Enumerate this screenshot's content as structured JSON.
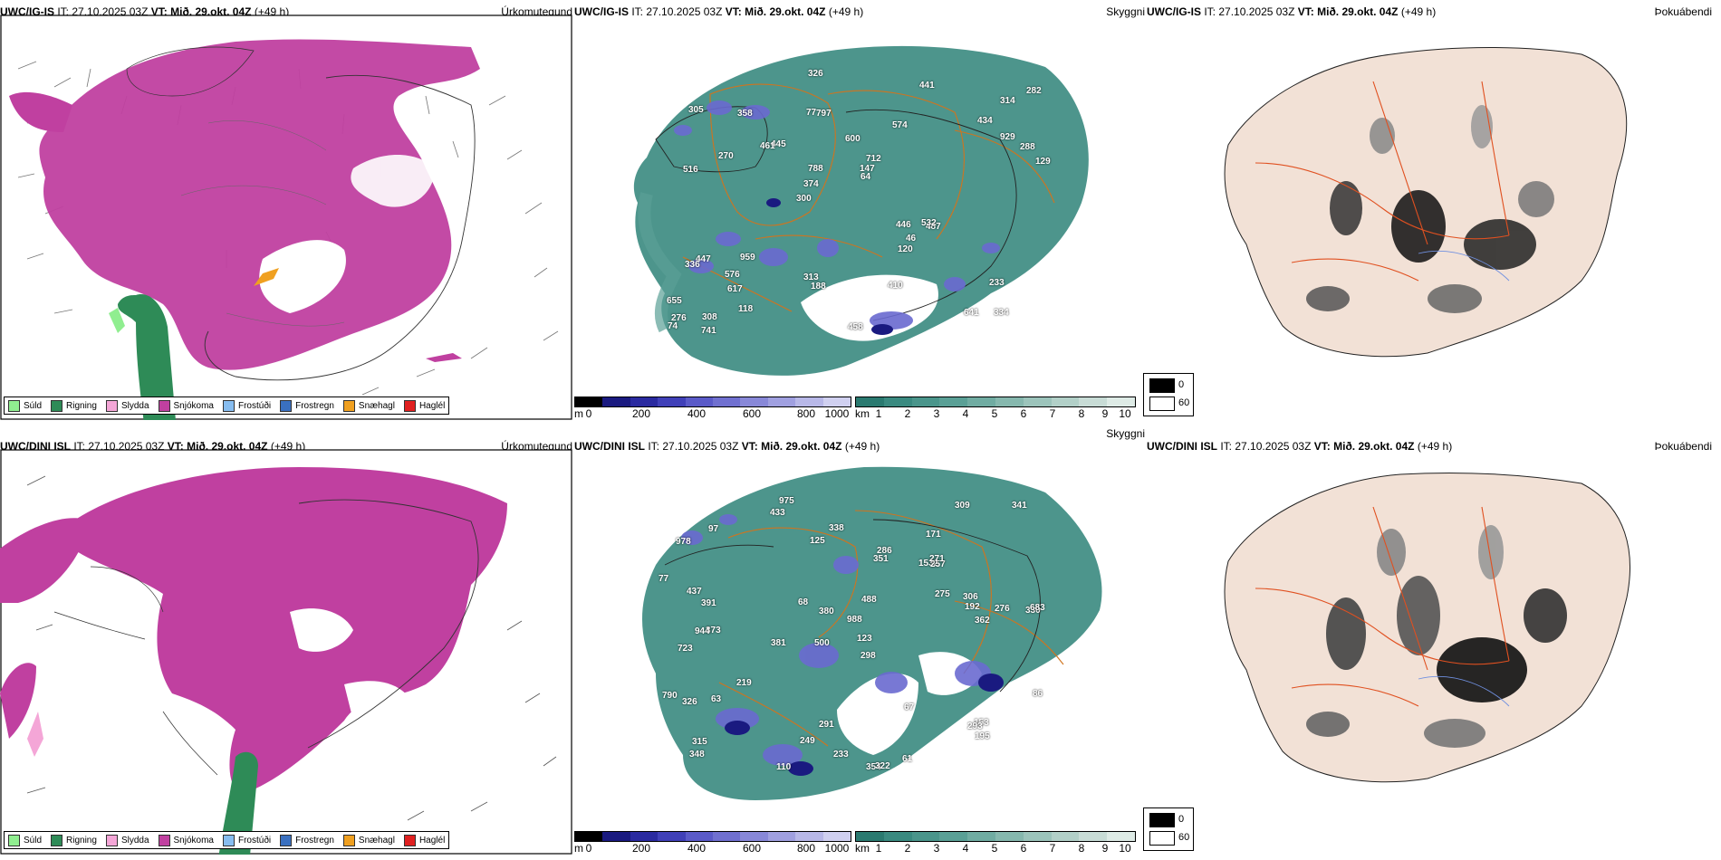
{
  "rows": [
    {
      "model": "UWC/IG-IS",
      "it_label": "IT:",
      "it_value": "27.10.2025 03Z",
      "vt_label": "VT:",
      "vt_value": "Mið. 29.okt. 04Z",
      "lead": "(+49 h)",
      "titles": [
        "Úrkomutegund",
        "Skyggni",
        "Þokuábendi"
      ]
    },
    {
      "model": "UWC/DINI ISL",
      "it_label": "IT:",
      "it_value": "27.10.2025 03Z",
      "vt_label": "VT:",
      "vt_value": "Mið. 29.okt. 04Z",
      "lead": "(+49 h)",
      "titles": [
        "Úrkomutegund",
        "Skyggni",
        "Þokuábendi"
      ]
    }
  ],
  "precip_legend": [
    {
      "label": "Súld",
      "color": "#90ee90"
    },
    {
      "label": "Rigning",
      "color": "#2e8b57"
    },
    {
      "label": "Slydda",
      "color": "#f4a6d7"
    },
    {
      "label": "Snjókoma",
      "color": "#c040a0"
    },
    {
      "label": "Frostúði",
      "color": "#87bdf0"
    },
    {
      "label": "Frostregn",
      "color": "#3a70c0"
    },
    {
      "label": "Snæhagl",
      "color": "#f0a020"
    },
    {
      "label": "Haglél",
      "color": "#e02020"
    }
  ],
  "cloudbase_bar": {
    "unit": "m",
    "ticks": [
      "0",
      "200",
      "400",
      "600",
      "800",
      "1000"
    ],
    "colors": [
      "#000000",
      "#1a1a80",
      "#2a2aa0",
      "#4040b8",
      "#5a5ac8",
      "#7070d0",
      "#8888d8",
      "#a0a0e0",
      "#b8b8e8",
      "#d0d0f0"
    ]
  },
  "visibility_bar": {
    "unit": "km",
    "ticks": [
      "1",
      "2",
      "3",
      "4",
      "5",
      "6",
      "7",
      "8",
      "9",
      "10"
    ],
    "colors": [
      "#2a7a70",
      "#3a8a80",
      "#4a958b",
      "#5aa096",
      "#70aca2",
      "#86b8ae",
      "#9cc4bb",
      "#b2d0c8",
      "#c8dcd6",
      "#deebe6"
    ]
  },
  "fog_legend": [
    {
      "label": "0",
      "color": "#000000"
    },
    {
      "label": "60",
      "color": "#ffffff"
    }
  ],
  "cloud_labels_top": [
    "334",
    "516",
    "314",
    "300",
    "574",
    "308",
    "77",
    "600",
    "447",
    "445",
    "655",
    "617",
    "797",
    "712",
    "487",
    "305",
    "326",
    "129",
    "446",
    "929",
    "374",
    "313",
    "788",
    "358",
    "441",
    "959",
    "641",
    "233",
    "532",
    "458",
    "461",
    "270",
    "120",
    "118",
    "288",
    "147",
    "276",
    "188",
    "64",
    "336",
    "434",
    "282",
    "46",
    "410",
    "576",
    "741",
    "74"
  ],
  "cloud_labels_bottom": [
    "975",
    "171",
    "330",
    "500",
    "298",
    "373",
    "978",
    "1532",
    "723",
    "351",
    "988",
    "348",
    "433",
    "381",
    "354",
    "322",
    "291",
    "309",
    "275",
    "219",
    "391",
    "944",
    "683",
    "276",
    "790",
    "437",
    "380",
    "192",
    "153",
    "326",
    "293",
    "286",
    "63",
    "68",
    "67",
    "86",
    "306",
    "249",
    "341",
    "338",
    "315",
    "110",
    "61",
    "97",
    "233",
    "257",
    "195",
    "271",
    "77",
    "123",
    "125",
    "362",
    "488"
  ]
}
